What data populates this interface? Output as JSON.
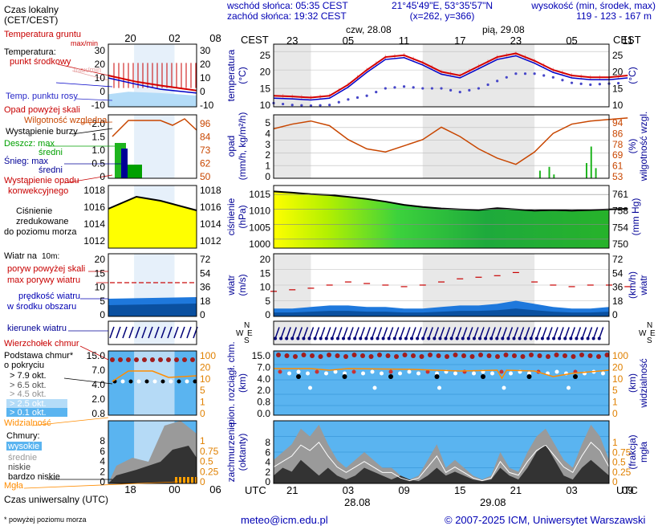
{
  "header": {
    "local_time_label_1": "Czas lokalny",
    "local_time_label_2": "(CET/CEST)",
    "sunrise": "wschód słońca: 05:35 CEST",
    "sunset": "zachód słońca: 19:32 CEST",
    "coords": "21°45'49\"E, 53°35'57\"N",
    "grid": "(x=262,  y=366)",
    "height_label": "wysokość (min, środek, max)",
    "height_values": "119 - 123 - 167 m",
    "tz_left": "CEST",
    "tz_right": "CEST",
    "day1": "czw, 28.08",
    "day2": "pią, 29.08",
    "legend_top_hours": [
      "20",
      "02",
      "08"
    ],
    "top_hours": [
      "23",
      "05",
      "11",
      "17",
      "23",
      "05",
      "11",
      "17",
      "23",
      "05"
    ]
  },
  "legend": {
    "temp_ground": "Temperatura gruntu",
    "temp_ground_sub": "max/min",
    "temp_title": "Temperatura:",
    "temp_mid": "punkt środkowy",
    "temp_maxmin": "max/min",
    "temp_felt": "odczuwana",
    "dew": "Temp. punktu rosy",
    "precip_above": "Opad powyżej skali",
    "humidity": "Wilgotność względna",
    "storm": "Wystąpienie burzy",
    "rain_max": "Deszcz: max",
    "rain_mid": "średni",
    "snow_max": "Śnieg:    max",
    "snow_mid": "średni",
    "conv": "Wystąpienie opadu",
    "conv2": "konwekcyjnego",
    "pressure_1": "Ciśnienie",
    "pressure_2": "zredukowane",
    "pressure_3": "do poziomu morza",
    "wind_title": "Wiatr na",
    "wind_height": "10m:",
    "gust_above": "poryw powyżej skali",
    "gust_max": "max porywy wiatru",
    "wind_speed_1": "prędkość wiatru",
    "wind_speed_2": "w środku obszaru",
    "wind_dir": "kierunek wiatru",
    "cloud_top": "Wierzchołek chmur",
    "cloud_base_1": "Podstawa chmur*",
    "cloud_base_2": "o pokryciu",
    "okt": [
      "> 7.9 okt.",
      "> 6.5 okt.",
      "> 4.5 okt.",
      "> 2.5 okt.",
      "> 0.1 okt."
    ],
    "visibility": "Widzialność",
    "clouds_title": "Chmury:",
    "cl_high": "wysokie",
    "cl_mid": "średnie",
    "cl_low": "niskie",
    "cl_vlow": "bardzo niskie",
    "fog": "Mgła",
    "utc_label": "Czas uniwersalny (UTC)",
    "legend_bottom_hours": [
      "18",
      "00",
      "06"
    ],
    "footnote": "* powyżej poziomu morza"
  },
  "panels": {
    "temp": {
      "label": "temperatura",
      "unit": "(°C)",
      "ticks": [
        "25",
        "20",
        "15",
        "10"
      ]
    },
    "precip": {
      "label": "opad",
      "unit": "(mm/h, kg/m²/h)",
      "ticks": [
        "5",
        "4",
        "3",
        "2",
        "1",
        "0"
      ],
      "label_r": "wilgotność wzgl.",
      "unit_r": "(%)",
      "ticks_r": [
        "94",
        "86",
        "78",
        "69",
        "61",
        "53"
      ]
    },
    "pressure": {
      "label": "ciśnienie",
      "unit": "(hPa)",
      "ticks": [
        "1015",
        "1010",
        "1005",
        "1000"
      ],
      "label_r": "(mm Hg)",
      "ticks_r": [
        "761",
        "758",
        "754",
        "750"
      ]
    },
    "wind": {
      "label": "wiatr",
      "unit": "(m/s)",
      "ticks": [
        "20",
        "15",
        "10",
        "5",
        "0"
      ],
      "label_r": "wiatr",
      "unit_r": "(km/h)",
      "ticks_r": [
        "72",
        "54",
        "36",
        "18",
        "0"
      ]
    },
    "cloud": {
      "label": "pion. rozciągł. chm.",
      "unit": "(km)",
      "ticks": [
        "15.0",
        "7.0",
        "4.0",
        "2.0",
        "0.8",
        "0.0"
      ],
      "label_r": "widzialność",
      "unit_r": "(km)",
      "ticks_r": [
        "100",
        "20",
        "10",
        "5",
        "1",
        "0"
      ]
    },
    "cover": {
      "label": "zachmurzenie",
      "unit": "(oktanty)",
      "ticks": [
        "8",
        "6",
        "4",
        "2",
        "0"
      ],
      "label_r": "mgła",
      "unit_r": "(frakcja)",
      "ticks_r": [
        "1",
        "0.75",
        "0.5",
        "0.25",
        "0"
      ]
    }
  },
  "legend_ticks": {
    "temp_left": [
      "30",
      "20",
      "10",
      "0",
      "-10"
    ],
    "temp_right": [
      "30",
      "20",
      "10",
      "0",
      "-10"
    ],
    "precip_left": [
      "2.0",
      "1.5",
      "1.0",
      "0.5",
      "0"
    ],
    "precip_right": [
      "96",
      "84",
      "73",
      "62",
      "50"
    ],
    "press_left": [
      "1018",
      "1016",
      "1014",
      "1012"
    ],
    "press_right": [
      "1018",
      "1016",
      "1014",
      "1012"
    ],
    "wind_left": [
      "20",
      "15",
      "10",
      "5",
      "0"
    ],
    "wind_right": [
      "72",
      "54",
      "36",
      "18",
      "0"
    ],
    "cloud_left": [
      "15.0",
      "7.0",
      "4.0",
      "2.0",
      "0.8"
    ],
    "cloud_right": [
      "100",
      "20",
      "10",
      "5",
      "1",
      "0"
    ],
    "cover_left": [
      "8",
      "6",
      "4",
      "2",
      "0"
    ],
    "cover_right": [
      "1",
      "0.75",
      "0.5",
      "0.25",
      "0"
    ]
  },
  "utc": {
    "left": "UTC",
    "right": "UTC",
    "hours": [
      "21",
      "03",
      "09",
      "15",
      "21",
      "03",
      "09",
      "15",
      "21",
      "03"
    ],
    "date1": "28.08",
    "date2": "29.08"
  },
  "footer": {
    "email": "meteo@icm.edu.pl",
    "copyright": "© 2007-2025 ICM, Uniwersytet Warszawski"
  },
  "colors": {
    "temp": "#d40000",
    "felt": "#0000c8",
    "dew": "#4646c8",
    "humidity": "#c84600",
    "pressure_fill": "#2ecc2e",
    "wind_fill": "#1e78dc",
    "cloud_bg": "#5ab4f0",
    "gust": "#c80000"
  },
  "chart_data": [
    {
      "type": "line",
      "panel": "temperature",
      "x_hours_utc": [
        21,
        0,
        3,
        6,
        9,
        12,
        15,
        18,
        21,
        0,
        3,
        6,
        9,
        12,
        15,
        18,
        21,
        0,
        3,
        6
      ],
      "series": [
        {
          "name": "temperatura",
          "values": [
            13,
            12.8,
            12.5,
            13,
            16,
            20,
            23.5,
            24,
            22,
            19.5,
            18.5,
            21,
            23.5,
            24.5,
            22.5,
            20,
            18.5,
            18,
            18,
            18.5
          ]
        },
        {
          "name": "punkt rosy",
          "values": [
            11,
            10.5,
            10.3,
            10.5,
            12,
            13,
            15,
            15.5,
            15,
            15,
            14,
            15,
            17,
            19,
            19,
            18,
            16.5,
            16,
            16.3,
            16.5
          ]
        }
      ],
      "ylim": [
        10,
        27
      ]
    },
    {
      "type": "line",
      "panel": "humidity",
      "x_hours_utc": [
        21,
        0,
        3,
        6,
        9,
        12,
        15,
        18,
        21,
        0,
        3,
        6,
        9,
        12,
        15,
        18,
        21,
        0,
        3,
        6
      ],
      "series": [
        {
          "name": "wilgotność",
          "values": [
            85,
            88,
            90,
            87,
            78,
            72,
            70,
            74,
            78,
            86,
            80,
            72,
            66,
            62,
            70,
            82,
            88,
            90,
            91,
            92
          ]
        }
      ],
      "ylim": [
        53,
        94
      ]
    },
    {
      "type": "area",
      "panel": "pressure",
      "x_hours_utc": [
        21,
        0,
        3,
        6,
        9,
        12,
        15,
        18,
        21,
        0,
        3,
        6,
        9,
        12,
        15,
        18,
        21,
        0,
        3,
        6
      ],
      "series": [
        {
          "name": "ciśnienie",
          "values": [
            1016,
            1015.6,
            1015.1,
            1014.8,
            1014.2,
            1013.5,
            1012.6,
            1011.5,
            1010.8,
            1010.3,
            1010,
            1009.8,
            1010.4,
            1010,
            1009.6,
            1009.8,
            1009.6,
            1009.8,
            1010,
            1010.2
          ]
        }
      ],
      "ylim": [
        997,
        1018
      ]
    },
    {
      "type": "area",
      "panel": "wind",
      "x_hours_utc": [
        21,
        0,
        3,
        6,
        9,
        12,
        15,
        18,
        21,
        0,
        3,
        6,
        9,
        12,
        15,
        18,
        21,
        0,
        3,
        6
      ],
      "series": [
        {
          "name": "prędkość wiatru",
          "values": [
            2.5,
            2.5,
            3,
            3.5,
            3.5,
            3,
            3,
            2.5,
            2.5,
            3,
            3.5,
            3.5,
            4,
            5,
            4,
            3,
            2.5,
            2.5,
            3,
            3
          ]
        },
        {
          "name": "max porywy",
          "values": [
            8,
            8.5,
            9,
            10,
            11,
            10.5,
            10,
            9.5,
            10,
            11,
            12,
            12.5,
            13,
            14,
            11,
            10,
            9.5,
            10,
            10,
            9.5
          ]
        }
      ],
      "ylim": [
        0,
        20
      ]
    },
    {
      "type": "scatter",
      "panel": "cloud base",
      "note": "cloud-base dots at visible heights",
      "ylim": [
        0,
        15
      ]
    },
    {
      "type": "area",
      "panel": "cloud cover",
      "ylim": [
        0,
        8
      ]
    }
  ]
}
